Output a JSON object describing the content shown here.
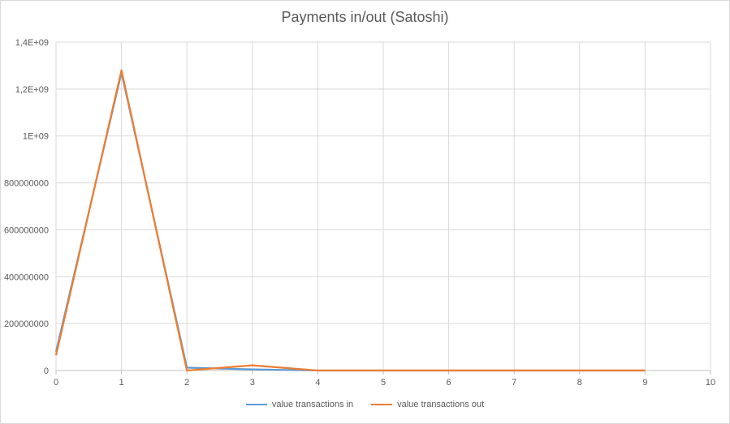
{
  "chart_data": {
    "type": "line",
    "title": "Payments in/out (Satoshi)",
    "xlabel": "",
    "ylabel": "",
    "xlim": [
      0,
      10
    ],
    "ylim": [
      0,
      1400000000
    ],
    "x_ticks": [
      "0",
      "1",
      "2",
      "3",
      "4",
      "5",
      "6",
      "7",
      "8",
      "9",
      "10"
    ],
    "y_ticks": [
      {
        "value": 0,
        "label": "0"
      },
      {
        "value": 200000000,
        "label": "200000000"
      },
      {
        "value": 400000000,
        "label": "400000000"
      },
      {
        "value": 600000000,
        "label": "600000000"
      },
      {
        "value": 800000000,
        "label": "800000000"
      },
      {
        "value": 1000000000,
        "label": "1E+09"
      },
      {
        "value": 1200000000,
        "label": "1,2E+09"
      },
      {
        "value": 1400000000,
        "label": "1,4E+09"
      }
    ],
    "grid": true,
    "legend_position": "bottom",
    "x": [
      0,
      1,
      2,
      3,
      4,
      5,
      6,
      7,
      8,
      9
    ],
    "series": [
      {
        "name": "value transactions in",
        "color": "#5b9bd5",
        "values": [
          80000000,
          1270000000,
          12000000,
          5000000,
          0,
          0,
          0,
          0,
          0,
          0
        ]
      },
      {
        "name": "value transactions out",
        "color": "#ed7d31",
        "values": [
          65000000,
          1280000000,
          0,
          22000000,
          0,
          0,
          0,
          0,
          0,
          0
        ]
      }
    ]
  }
}
